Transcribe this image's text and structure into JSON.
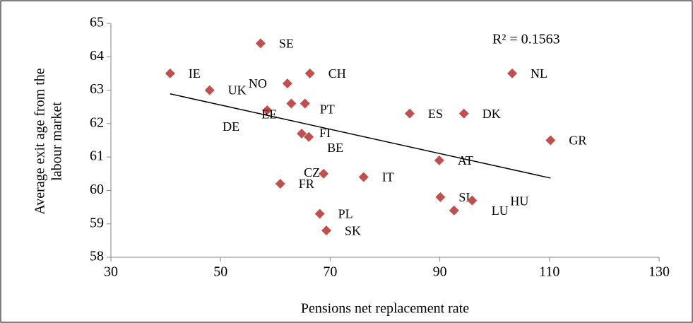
{
  "chart_data": {
    "type": "scatter",
    "xlabel": "Pensions net replacement rate",
    "ylabel": [
      "Average exit age from the",
      "labour market"
    ],
    "annotation": "R² = 0.1563",
    "color": "#c0504d",
    "labels": [
      "IE",
      "SE",
      "NO",
      "CH",
      "NL",
      "UK",
      "DE",
      "EE",
      "PT",
      "FI",
      "BE",
      "ES",
      "DK",
      "GR",
      "AT",
      "CZ",
      "IT",
      "FR",
      "SI",
      "HU",
      "LU",
      "PL",
      "SK"
    ],
    "x": [
      40.8,
      57.3,
      62.2,
      66.3,
      103.2,
      48.0,
      58.5,
      62.9,
      65.4,
      64.8,
      66.1,
      84.5,
      94.4,
      110.2,
      89.9,
      68.8,
      76.1,
      60.9,
      90.1,
      95.9,
      92.6,
      68.1,
      69.3
    ],
    "values": [
      63.5,
      64.4,
      63.2,
      63.5,
      63.5,
      63.0,
      62.4,
      62.6,
      62.6,
      61.7,
      61.6,
      62.3,
      62.3,
      61.5,
      60.9,
      60.5,
      60.4,
      60.2,
      59.8,
      59.7,
      59.4,
      59.3,
      58.8
    ],
    "trendline": {
      "x": [
        40.8,
        110.2
      ],
      "y": [
        62.89,
        60.37
      ]
    },
    "xlim": [
      30,
      130
    ],
    "xticks": [
      30,
      50,
      70,
      90,
      110,
      130
    ],
    "ylim": [
      58,
      65
    ],
    "yticks": [
      58,
      59,
      60,
      61,
      62,
      63,
      64,
      65
    ]
  }
}
